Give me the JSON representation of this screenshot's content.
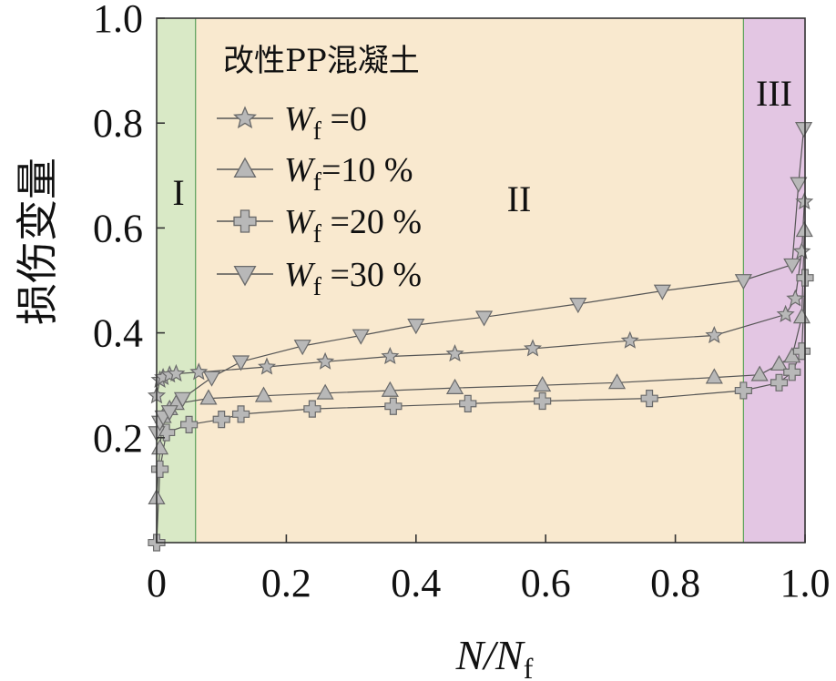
{
  "chart_data": {
    "type": "line",
    "xlabel": "N/N_f",
    "ylabel": "损伤变量",
    "xlim": [
      0,
      1.0
    ],
    "ylim": [
      0,
      1.0
    ],
    "xticks": [
      "0",
      "0.2",
      "0.4",
      "0.6",
      "0.8",
      "1.0"
    ],
    "yticks": [
      "0.2",
      "0.4",
      "0.6",
      "0.8",
      "1.0"
    ],
    "grid": false,
    "legend_title": "改性PP混凝土",
    "legend_position": "top-left",
    "regions": [
      {
        "label": "I",
        "x_range": [
          0,
          0.06
        ],
        "color": "#d9e9c6"
      },
      {
        "label": "II",
        "x_range": [
          0.06,
          0.905
        ],
        "color": "#f9e9cf"
      },
      {
        "label": "III",
        "x_range": [
          0.905,
          1.0
        ],
        "color": "#e3c6e3"
      }
    ],
    "series": [
      {
        "name": "Wf =0",
        "marker": "star",
        "x": [
          0,
          0.005,
          0.01,
          0.02,
          0.03,
          0.065,
          0.17,
          0.26,
          0.36,
          0.46,
          0.58,
          0.73,
          0.86,
          0.97,
          0.985,
          0.995,
          0.999
        ],
        "y": [
          0.28,
          0.31,
          0.315,
          0.32,
          0.322,
          0.325,
          0.335,
          0.345,
          0.355,
          0.36,
          0.37,
          0.385,
          0.395,
          0.435,
          0.465,
          0.555,
          0.65
        ]
      },
      {
        "name": "Wf=10 %",
        "marker": "triangle-up",
        "x": [
          0,
          0.005,
          0.01,
          0.02,
          0.03,
          0.08,
          0.165,
          0.26,
          0.36,
          0.46,
          0.595,
          0.71,
          0.86,
          0.93,
          0.96,
          0.98,
          0.995,
          0.999
        ],
        "y": [
          0.085,
          0.18,
          0.24,
          0.255,
          0.265,
          0.275,
          0.28,
          0.285,
          0.29,
          0.295,
          0.3,
          0.305,
          0.315,
          0.32,
          0.34,
          0.355,
          0.43,
          0.595
        ]
      },
      {
        "name": "Wf =20 %",
        "marker": "plus",
        "x": [
          0,
          0.005,
          0.015,
          0.05,
          0.1,
          0.13,
          0.24,
          0.365,
          0.48,
          0.595,
          0.76,
          0.905,
          0.96,
          0.98,
          0.995,
          1.0
        ],
        "y": [
          0,
          0.14,
          0.21,
          0.225,
          0.235,
          0.245,
          0.255,
          0.26,
          0.265,
          0.27,
          0.275,
          0.29,
          0.305,
          0.325,
          0.365,
          0.505
        ]
      },
      {
        "name": "Wf =30 %",
        "marker": "triangle-down",
        "x": [
          0,
          0.005,
          0.01,
          0.02,
          0.04,
          0.085,
          0.13,
          0.225,
          0.315,
          0.4,
          0.505,
          0.65,
          0.78,
          0.905,
          0.98,
          0.99,
          0.998
        ],
        "y": [
          0.21,
          0.23,
          0.24,
          0.25,
          0.275,
          0.315,
          0.345,
          0.375,
          0.395,
          0.415,
          0.43,
          0.455,
          0.48,
          0.5,
          0.53,
          0.685,
          0.79
        ]
      }
    ]
  }
}
